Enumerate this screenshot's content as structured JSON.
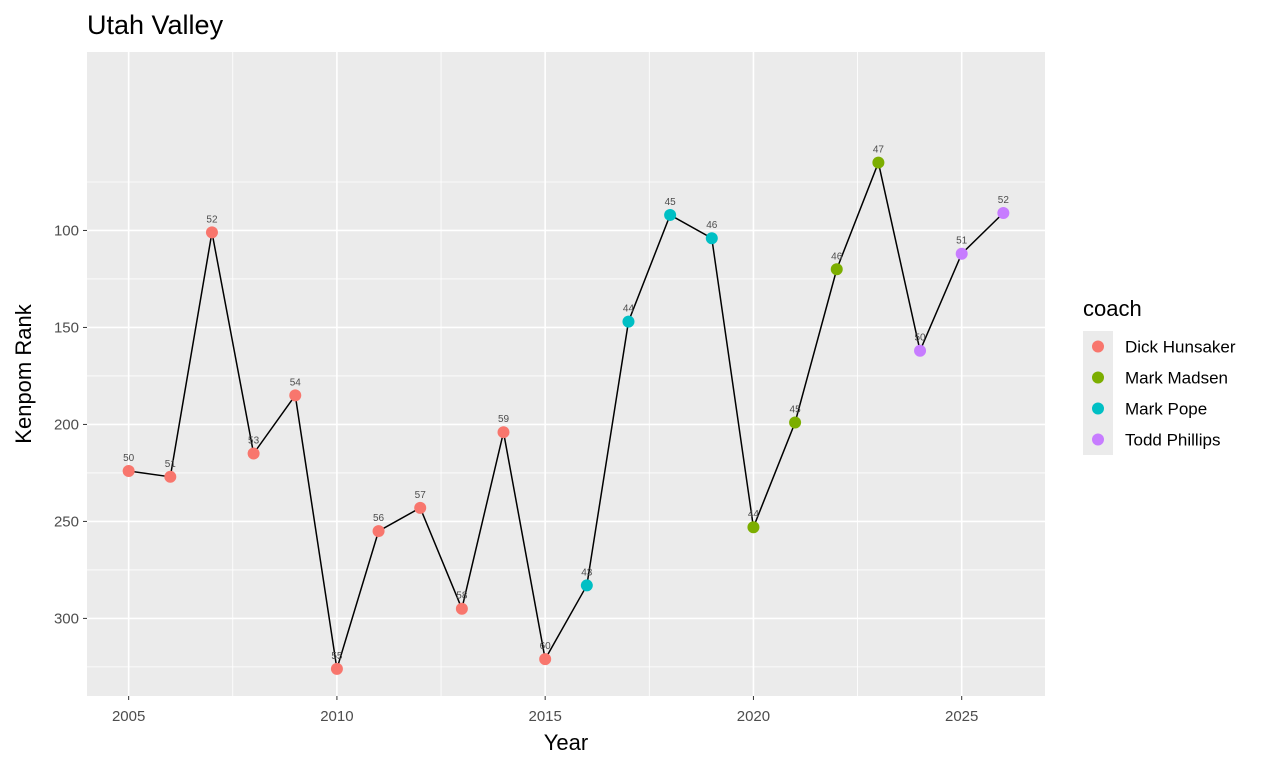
{
  "chart_data": {
    "type": "line",
    "title": "Utah Valley",
    "xlabel": "Year",
    "ylabel": "Kenpom Rank",
    "y_reversed": true,
    "xlim": [
      2004.0,
      2027.0
    ],
    "ylim": [
      340,
      8
    ],
    "x_ticks": [
      2005,
      2010,
      2015,
      2020,
      2025
    ],
    "x_tick_labels": [
      "2005",
      "2010",
      "2015",
      "2020",
      "2025"
    ],
    "y_ticks": [
      100,
      150,
      200,
      250,
      300
    ],
    "y_tick_labels": [
      "100",
      "150",
      "200",
      "250",
      "300"
    ],
    "grid": true,
    "panel_background": "#ebebeb",
    "grid_color": "#ffffff",
    "line_color": "#000000",
    "legend": {
      "title": "coach",
      "position": "right",
      "entries": [
        {
          "name": "Dick Hunsaker",
          "color": "#f8766d"
        },
        {
          "name": "Mark Madsen",
          "color": "#7cae00"
        },
        {
          "name": "Mark Pope",
          "color": "#00bfc4"
        },
        {
          "name": "Todd Phillips",
          "color": "#c77cff"
        }
      ]
    },
    "points": [
      {
        "year": 2005,
        "rank": 224,
        "label": "50",
        "coach": "Dick Hunsaker"
      },
      {
        "year": 2006,
        "rank": 227,
        "label": "51",
        "coach": "Dick Hunsaker"
      },
      {
        "year": 2007,
        "rank": 101,
        "label": "52",
        "coach": "Dick Hunsaker"
      },
      {
        "year": 2008,
        "rank": 215,
        "label": "53",
        "coach": "Dick Hunsaker"
      },
      {
        "year": 2009,
        "rank": 185,
        "label": "54",
        "coach": "Dick Hunsaker"
      },
      {
        "year": 2010,
        "rank": 326,
        "label": "55",
        "coach": "Dick Hunsaker"
      },
      {
        "year": 2011,
        "rank": 255,
        "label": "56",
        "coach": "Dick Hunsaker"
      },
      {
        "year": 2012,
        "rank": 243,
        "label": "57",
        "coach": "Dick Hunsaker"
      },
      {
        "year": 2013,
        "rank": 295,
        "label": "58",
        "coach": "Dick Hunsaker"
      },
      {
        "year": 2014,
        "rank": 204,
        "label": "59",
        "coach": "Dick Hunsaker"
      },
      {
        "year": 2015,
        "rank": 321,
        "label": "60",
        "coach": "Dick Hunsaker"
      },
      {
        "year": 2016,
        "rank": 283,
        "label": "43",
        "coach": "Mark Pope"
      },
      {
        "year": 2017,
        "rank": 147,
        "label": "44",
        "coach": "Mark Pope"
      },
      {
        "year": 2018,
        "rank": 92,
        "label": "45",
        "coach": "Mark Pope"
      },
      {
        "year": 2019,
        "rank": 104,
        "label": "46",
        "coach": "Mark Pope"
      },
      {
        "year": 2020,
        "rank": 253,
        "label": "44",
        "coach": "Mark Madsen"
      },
      {
        "year": 2021,
        "rank": 199,
        "label": "45",
        "coach": "Mark Madsen"
      },
      {
        "year": 2022,
        "rank": 120,
        "label": "46",
        "coach": "Mark Madsen"
      },
      {
        "year": 2023,
        "rank": 65,
        "label": "47",
        "coach": "Mark Madsen"
      },
      {
        "year": 2024,
        "rank": 162,
        "label": "50",
        "coach": "Todd Phillips"
      },
      {
        "year": 2025,
        "rank": 112,
        "label": "51",
        "coach": "Todd Phillips"
      },
      {
        "year": 2026,
        "rank": 91,
        "label": "52",
        "coach": "Todd Phillips"
      }
    ]
  }
}
